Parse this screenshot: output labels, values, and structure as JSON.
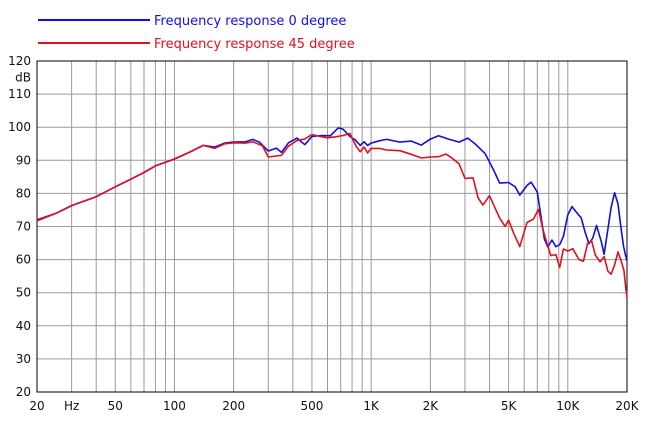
{
  "chart_data": {
    "type": "line",
    "title": "",
    "xlabel": "",
    "ylabel": "dB",
    "x_scale": "log",
    "xlim": [
      20,
      20000
    ],
    "ylim": [
      20,
      120
    ],
    "grid": true,
    "legend_position": "top-left",
    "x_tick_labels": [
      {
        "value": 20,
        "label": "20"
      },
      {
        "value": 30,
        "label": "Hz"
      },
      {
        "value": 50,
        "label": "50"
      },
      {
        "value": 100,
        "label": "100"
      },
      {
        "value": 200,
        "label": "200"
      },
      {
        "value": 500,
        "label": "500"
      },
      {
        "value": 1000,
        "label": "1K"
      },
      {
        "value": 2000,
        "label": "2K"
      },
      {
        "value": 5000,
        "label": "5K"
      },
      {
        "value": 10000,
        "label": "10K"
      },
      {
        "value": 20000,
        "label": "20K"
      }
    ],
    "y_ticks": [
      20,
      30,
      40,
      50,
      60,
      70,
      80,
      90,
      100,
      110,
      120
    ],
    "series": [
      {
        "name": "Frequency response 0 degree",
        "color": "#1010e0",
        "points": [
          [
            20,
            72
          ],
          [
            25,
            74
          ],
          [
            30,
            76.3
          ],
          [
            40,
            79
          ],
          [
            50,
            82
          ],
          [
            60,
            84.3
          ],
          [
            70,
            86.3
          ],
          [
            80,
            88.3
          ],
          [
            100,
            90.4
          ],
          [
            120,
            92.5
          ],
          [
            140,
            94.5
          ],
          [
            160,
            94
          ],
          [
            180,
            95.2
          ],
          [
            200,
            95.5
          ],
          [
            230,
            95.6
          ],
          [
            250,
            96.3
          ],
          [
            270,
            95.5
          ],
          [
            300,
            92.8
          ],
          [
            330,
            93.7
          ],
          [
            350,
            92.4
          ],
          [
            380,
            95.3
          ],
          [
            420,
            96.7
          ],
          [
            460,
            94.7
          ],
          [
            500,
            97.2
          ],
          [
            560,
            97.5
          ],
          [
            620,
            97.4
          ],
          [
            680,
            99.8
          ],
          [
            720,
            99.4
          ],
          [
            780,
            97.2
          ],
          [
            830,
            96.2
          ],
          [
            880,
            94.5
          ],
          [
            920,
            95.6
          ],
          [
            960,
            94.5
          ],
          [
            1000,
            95.2
          ],
          [
            1100,
            95.9
          ],
          [
            1200,
            96.3
          ],
          [
            1400,
            95.5
          ],
          [
            1600,
            95.8
          ],
          [
            1800,
            94.6
          ],
          [
            2000,
            96.4
          ],
          [
            2200,
            97.4
          ],
          [
            2500,
            96.3
          ],
          [
            2800,
            95.5
          ],
          [
            3100,
            96.7
          ],
          [
            3400,
            94.8
          ],
          [
            3800,
            92
          ],
          [
            4200,
            87
          ],
          [
            4500,
            83.1
          ],
          [
            5000,
            83.3
          ],
          [
            5400,
            82
          ],
          [
            5700,
            79.5
          ],
          [
            6200,
            82.4
          ],
          [
            6500,
            83.4
          ],
          [
            7000,
            80.4
          ],
          [
            7300,
            73.2
          ],
          [
            7600,
            66.2
          ],
          [
            7900,
            63.8
          ],
          [
            8300,
            65.9
          ],
          [
            8700,
            63.9
          ],
          [
            9100,
            64.5
          ],
          [
            9500,
            67
          ],
          [
            10000,
            73.5
          ],
          [
            10500,
            76
          ],
          [
            11000,
            74.5
          ],
          [
            11700,
            72.6
          ],
          [
            12200,
            68.6
          ],
          [
            12800,
            64.8
          ],
          [
            13400,
            66.5
          ],
          [
            14000,
            70.3
          ],
          [
            14800,
            65.4
          ],
          [
            15300,
            61.6
          ],
          [
            16000,
            69.2
          ],
          [
            16600,
            75.7
          ],
          [
            17300,
            80.2
          ],
          [
            18000,
            76.8
          ],
          [
            18700,
            68.9
          ],
          [
            19200,
            64.1
          ],
          [
            19600,
            61.6
          ],
          [
            20000,
            59.6
          ]
        ]
      },
      {
        "name": "Frequency response 45 degree",
        "color": "#e01020",
        "points": [
          [
            20,
            71.7
          ],
          [
            25,
            74
          ],
          [
            30,
            76.3
          ],
          [
            40,
            79
          ],
          [
            50,
            82
          ],
          [
            60,
            84.3
          ],
          [
            70,
            86.3
          ],
          [
            80,
            88.3
          ],
          [
            100,
            90.4
          ],
          [
            120,
            92.5
          ],
          [
            140,
            94.5
          ],
          [
            160,
            93.6
          ],
          [
            180,
            95
          ],
          [
            200,
            95.3
          ],
          [
            230,
            95.2
          ],
          [
            250,
            95.6
          ],
          [
            280,
            94.4
          ],
          [
            300,
            91
          ],
          [
            330,
            91.3
          ],
          [
            350,
            91.5
          ],
          [
            380,
            94.3
          ],
          [
            420,
            96
          ],
          [
            460,
            96.4
          ],
          [
            500,
            97.8
          ],
          [
            540,
            97.3
          ],
          [
            600,
            96.8
          ],
          [
            660,
            97.1
          ],
          [
            720,
            97.5
          ],
          [
            780,
            98.1
          ],
          [
            840,
            94.2
          ],
          [
            880,
            92.6
          ],
          [
            920,
            94
          ],
          [
            960,
            92.2
          ],
          [
            1000,
            93.6
          ],
          [
            1100,
            93.6
          ],
          [
            1200,
            93.1
          ],
          [
            1400,
            92.9
          ],
          [
            1600,
            91.8
          ],
          [
            1800,
            90.7
          ],
          [
            2000,
            91
          ],
          [
            2200,
            91.1
          ],
          [
            2400,
            91.9
          ],
          [
            2600,
            90.5
          ],
          [
            2800,
            88.9
          ],
          [
            3000,
            84.5
          ],
          [
            3300,
            84.7
          ],
          [
            3500,
            78.6
          ],
          [
            3700,
            76.5
          ],
          [
            4000,
            79.3
          ],
          [
            4500,
            72.6
          ],
          [
            4800,
            70
          ],
          [
            5000,
            71.9
          ],
          [
            5300,
            68
          ],
          [
            5700,
            63.9
          ],
          [
            6200,
            71.2
          ],
          [
            6700,
            72.3
          ],
          [
            7100,
            75.2
          ],
          [
            7500,
            68.8
          ],
          [
            7800,
            65.3
          ],
          [
            8200,
            61.2
          ],
          [
            8700,
            61.5
          ],
          [
            9100,
            57.6
          ],
          [
            9500,
            63.2
          ],
          [
            10000,
            62.6
          ],
          [
            10600,
            63.3
          ],
          [
            11400,
            60
          ],
          [
            12000,
            59.5
          ],
          [
            12600,
            64.8
          ],
          [
            13200,
            65.8
          ],
          [
            13800,
            61.4
          ],
          [
            14600,
            59.3
          ],
          [
            15300,
            60.9
          ],
          [
            16000,
            56.5
          ],
          [
            16600,
            55.6
          ],
          [
            17300,
            58.4
          ],
          [
            18000,
            62.3
          ],
          [
            18700,
            59.5
          ],
          [
            19300,
            56.6
          ],
          [
            19700,
            51.6
          ],
          [
            20000,
            48.5
          ]
        ]
      }
    ]
  }
}
